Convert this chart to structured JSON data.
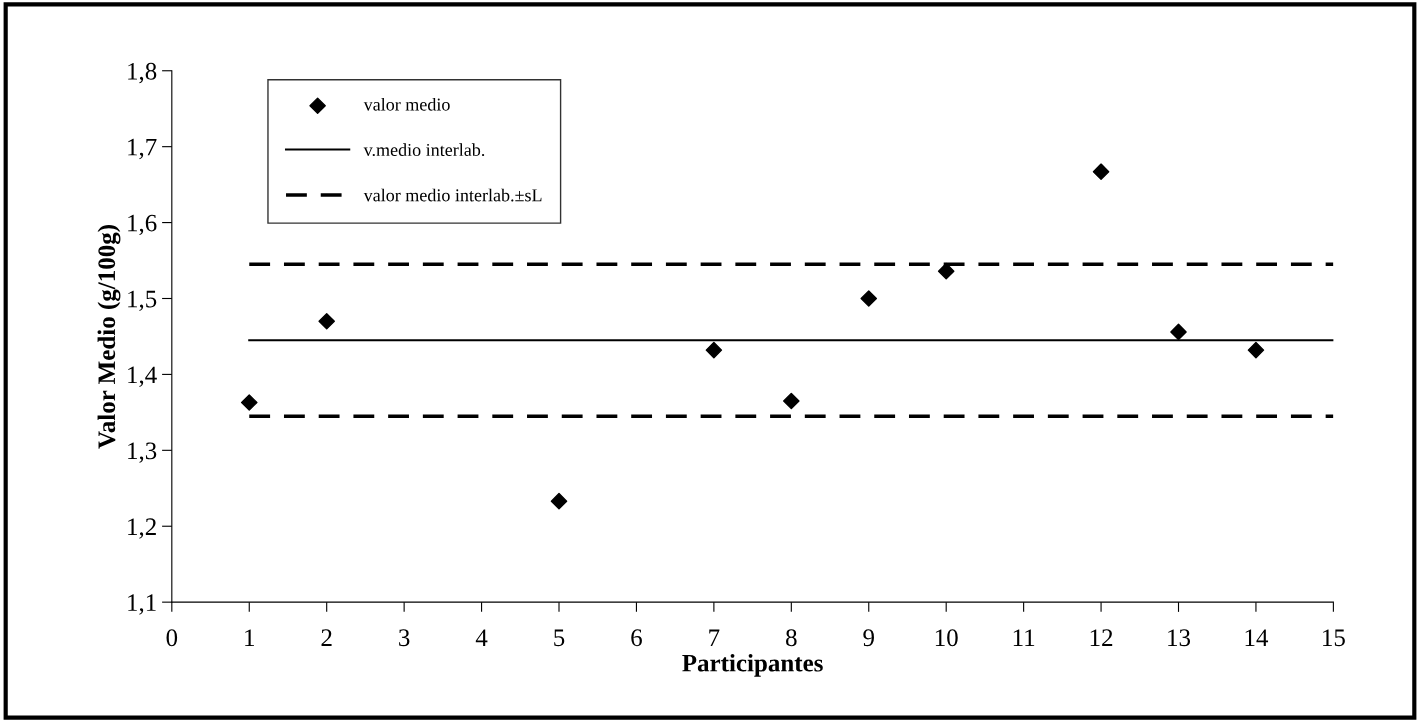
{
  "chart_data": {
    "type": "scatter",
    "xlabel": "Participantes",
    "ylabel": "Valor Medio (g/100g)",
    "xlim": [
      0,
      15
    ],
    "xticks": [
      0,
      1,
      2,
      3,
      4,
      5,
      6,
      7,
      8,
      9,
      10,
      11,
      12,
      13,
      14,
      15
    ],
    "ylim": [
      1.1,
      1.8
    ],
    "yticks": [
      {
        "value": 1.1,
        "label": "1,1"
      },
      {
        "value": 1.2,
        "label": "1,2"
      },
      {
        "value": 1.3,
        "label": "1,3"
      },
      {
        "value": 1.4,
        "label": "1,4"
      },
      {
        "value": 1.5,
        "label": "1,5"
      },
      {
        "value": 1.6,
        "label": "1,6"
      },
      {
        "value": 1.7,
        "label": "1,7"
      },
      {
        "value": 1.8,
        "label": "1,8"
      }
    ],
    "grid": false,
    "legend": "top left",
    "series": [
      {
        "name": "valor medio",
        "marker": "diamond",
        "color": "#000000",
        "x": [
          1,
          2,
          5,
          7,
          8,
          9,
          10,
          12,
          13,
          14
        ],
        "values": [
          1.363,
          1.47,
          1.233,
          1.432,
          1.365,
          1.5,
          1.536,
          1.667,
          1.456,
          1.432
        ]
      },
      {
        "name": "v.medio interlab.",
        "type": "line",
        "line_style": "solid",
        "color": "#000000",
        "x": [
          1,
          15
        ],
        "values": [
          1.445,
          1.445
        ]
      },
      {
        "name": "valor medio interlab.±sL",
        "type": "line",
        "line_style": "dashed",
        "color": "#000000",
        "x": [
          1,
          15
        ],
        "values": [
          1.545,
          1.545
        ]
      },
      {
        "type": "line",
        "line_style": "dashed",
        "color": "#000000",
        "x": [
          1,
          15
        ],
        "values": [
          1.345,
          1.345
        ]
      }
    ]
  }
}
